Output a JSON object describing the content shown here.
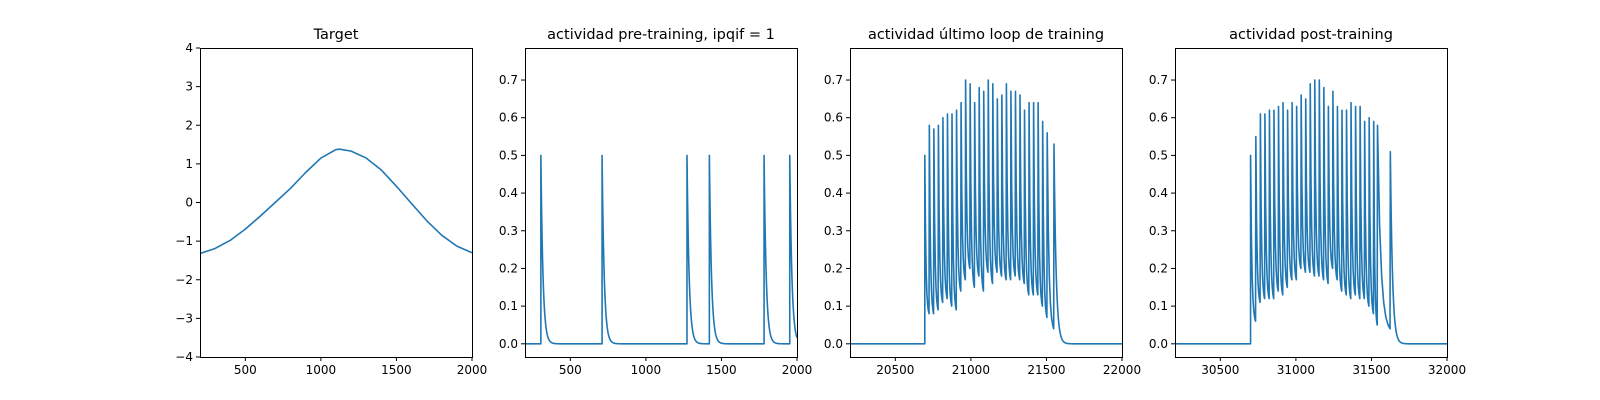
{
  "figure": {
    "background": "#ffffff",
    "line_color": "#1f77b4"
  },
  "chart_data": [
    {
      "type": "line",
      "title": "Target",
      "xlim": [
        200,
        2000
      ],
      "ylim": [
        -4,
        4
      ],
      "xticks": [
        500,
        1000,
        1500,
        2000
      ],
      "yticks": [
        -4,
        -3,
        -2,
        -1,
        0,
        1,
        2,
        3,
        4
      ],
      "xtick_labels": [
        "500",
        "1000",
        "1500",
        "2000"
      ],
      "ytick_labels": [
        "−4",
        "−3",
        "−2",
        "−1",
        "0",
        "1",
        "2",
        "3",
        "4"
      ],
      "grid": false,
      "series": [
        {
          "x": [
            200,
            300,
            400,
            500,
            600,
            700,
            800,
            900,
            1000,
            1100,
            1125,
            1200,
            1300,
            1400,
            1500,
            1600,
            1700,
            1800,
            1900,
            2000
          ],
          "y": [
            -1.32,
            -1.19,
            -0.98,
            -0.69,
            -0.35,
            0.01,
            0.37,
            0.78,
            1.15,
            1.37,
            1.38,
            1.33,
            1.15,
            0.84,
            0.42,
            -0.03,
            -0.47,
            -0.85,
            -1.13,
            -1.3
          ]
        }
      ]
    },
    {
      "type": "line",
      "title": "actividad pre-training, ipqif = 1",
      "xlim": [
        200,
        2000
      ],
      "ylim": [
        -0.035,
        0.785
      ],
      "xticks": [
        500,
        1000,
        1500,
        2000
      ],
      "yticks": [
        0.0,
        0.1,
        0.2,
        0.3,
        0.4,
        0.5,
        0.6,
        0.7
      ],
      "xtick_labels": [
        "500",
        "1000",
        "1500",
        "2000"
      ],
      "ytick_labels": [
        "0.0",
        "0.1",
        "0.2",
        "0.3",
        "0.4",
        "0.5",
        "0.6",
        "0.7"
      ],
      "grid": false,
      "spikes": {
        "times": [
          305,
          710,
          1272,
          1420,
          1782,
          1952
        ],
        "peak": 0.5,
        "decay": 14
      },
      "series": [
        {
          "x": [
            200,
            2000
          ],
          "y": [
            0,
            0
          ]
        }
      ]
    },
    {
      "type": "line",
      "title": "actividad último loop de training",
      "xlim": [
        20200,
        22000
      ],
      "ylim": [
        -0.035,
        0.785
      ],
      "xticks": [
        20500,
        21000,
        21500,
        22000
      ],
      "yticks": [
        0.0,
        0.1,
        0.2,
        0.3,
        0.4,
        0.5,
        0.6,
        0.7
      ],
      "xtick_labels": [
        "20500",
        "21000",
        "21500",
        "22000"
      ],
      "ytick_labels": [
        "0.0",
        "0.1",
        "0.2",
        "0.3",
        "0.4",
        "0.5",
        "0.6",
        "0.7"
      ],
      "grid": false,
      "burst": {
        "peak_x": [
          20695,
          20725,
          20755,
          20785,
          20815,
          20845,
          20875,
          20905,
          20935,
          20965,
          20995,
          21025,
          21055,
          21085,
          21115,
          21145,
          21175,
          21205,
          21235,
          21265,
          21295,
          21325,
          21355,
          21385,
          21415,
          21445,
          21475,
          21505,
          21550
        ],
        "peaks": [
          0.5,
          0.58,
          0.57,
          0.58,
          0.6,
          0.61,
          0.61,
          0.62,
          0.64,
          0.7,
          0.69,
          0.64,
          0.68,
          0.67,
          0.7,
          0.69,
          0.65,
          0.66,
          0.69,
          0.67,
          0.67,
          0.66,
          0.62,
          0.64,
          0.64,
          0.64,
          0.59,
          0.56,
          0.53
        ],
        "troughs": [
          0.08,
          0.08,
          0.09,
          0.11,
          0.12,
          0.1,
          0.09,
          0.14,
          0.17,
          0.2,
          0.15,
          0.18,
          0.14,
          0.19,
          0.16,
          0.19,
          0.18,
          0.17,
          0.17,
          0.18,
          0.17,
          0.16,
          0.13,
          0.13,
          0.13,
          0.1,
          0.07,
          0.04,
          0.0
        ],
        "decay": 14
      },
      "series": [
        {
          "x": [
            20200,
            20695
          ],
          "y": [
            0,
            0
          ]
        }
      ]
    },
    {
      "type": "line",
      "title": "actividad post-training",
      "xlim": [
        30200,
        32000
      ],
      "ylim": [
        -0.035,
        0.785
      ],
      "xticks": [
        30500,
        31000,
        31500,
        32000
      ],
      "yticks": [
        0.0,
        0.1,
        0.2,
        0.3,
        0.4,
        0.5,
        0.6,
        0.7
      ],
      "xtick_labels": [
        "30500",
        "31000",
        "31500",
        "32000"
      ],
      "ytick_labels": [
        "0.0",
        "0.1",
        "0.2",
        "0.3",
        "0.4",
        "0.5",
        "0.6",
        "0.7"
      ],
      "grid": false,
      "burst": {
        "peak_x": [
          30700,
          30735,
          30765,
          30795,
          30825,
          30855,
          30885,
          30915,
          30945,
          30975,
          31005,
          31035,
          31065,
          31095,
          31125,
          31155,
          31185,
          31215,
          31245,
          31275,
          31305,
          31335,
          31365,
          31395,
          31425,
          31455,
          31485,
          31515,
          31540,
          31625
        ],
        "peaks": [
          0.5,
          0.55,
          0.61,
          0.61,
          0.62,
          0.62,
          0.63,
          0.64,
          0.62,
          0.64,
          0.63,
          0.66,
          0.65,
          0.69,
          0.7,
          0.7,
          0.68,
          0.63,
          0.67,
          0.63,
          0.62,
          0.62,
          0.64,
          0.63,
          0.63,
          0.59,
          0.6,
          0.59,
          0.58,
          0.51
        ],
        "troughs": [
          0.06,
          0.11,
          0.12,
          0.12,
          0.12,
          0.14,
          0.13,
          0.15,
          0.17,
          0.17,
          0.2,
          0.19,
          0.19,
          0.18,
          0.18,
          0.17,
          0.16,
          0.2,
          0.17,
          0.14,
          0.13,
          0.12,
          0.13,
          0.12,
          0.12,
          0.1,
          0.08,
          0.05,
          0.04,
          0.0
        ],
        "decay": 14
      },
      "series": [
        {
          "x": [
            30200,
            30700
          ],
          "y": [
            0,
            0
          ]
        }
      ]
    }
  ]
}
